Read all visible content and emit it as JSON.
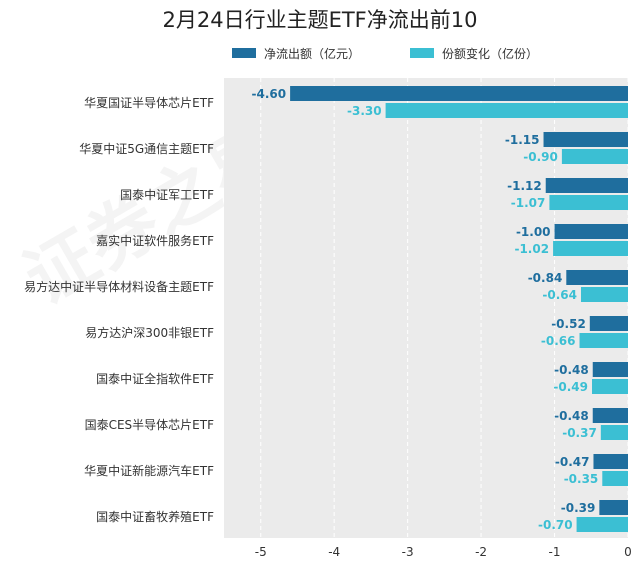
{
  "chart_data": {
    "type": "bar",
    "orientation": "horizontal",
    "title": "2月24日行业主题ETF净流出前10",
    "categories": [
      "华夏国证半导体芯片ETF",
      "华夏中证5G通信主题ETF",
      "国泰中证军工ETF",
      "嘉实中证软件服务ETF",
      "易方达中证半导体材料设备主题ETF",
      "易方达沪深300非银ETF",
      "国泰中证全指软件ETF",
      "国泰CES半导体芯片ETF",
      "华夏中证新能源汽车ETF",
      "国泰中证畜牧养殖ETF"
    ],
    "series": [
      {
        "name": "净流出额（亿元）",
        "color": "#1f6e9e",
        "values": [
          -4.6,
          -1.15,
          -1.12,
          -1.0,
          -0.84,
          -0.52,
          -0.48,
          -0.48,
          -0.47,
          -0.39
        ],
        "labels": [
          "-4.60",
          "-1.15",
          "-1.12",
          "-1.00",
          "-0.84",
          "-0.52",
          "-0.48",
          "-0.48",
          "-0.47",
          "-0.39"
        ]
      },
      {
        "name": "份额变化（亿份）",
        "color": "#3bbfd3",
        "values": [
          -3.3,
          -0.9,
          -1.07,
          -1.02,
          -0.64,
          -0.66,
          -0.49,
          -0.37,
          -0.35,
          -0.7
        ],
        "labels": [
          "-3.30",
          "-0.90",
          "-1.07",
          "-1.02",
          "-0.64",
          "-0.66",
          "-0.49",
          "-0.37",
          "-0.35",
          "-0.70"
        ]
      }
    ],
    "xlim": [
      -5.5,
      0
    ],
    "ticks": [
      -5,
      -4,
      -3,
      -2,
      -1,
      0
    ],
    "tick_labels": [
      "-5",
      "-4",
      "-3",
      "-2",
      "-1",
      "0"
    ],
    "legend_position": "top",
    "grid": true,
    "watermark": "证券之星"
  }
}
